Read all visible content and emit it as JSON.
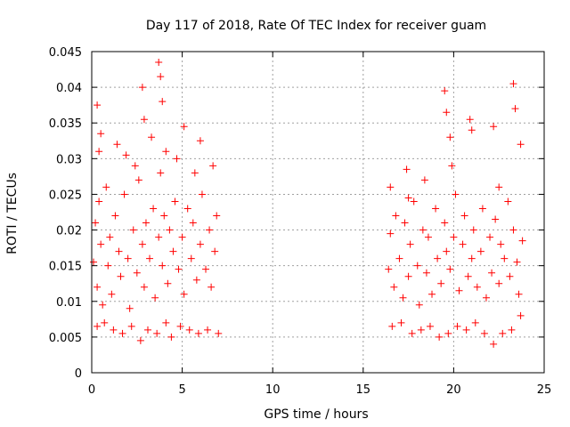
{
  "chart_data": {
    "type": "scatter",
    "title": "Day 117 of 2018, Rate Of TEC Index for receiver guam",
    "xlabel": "GPS time / hours",
    "ylabel": "ROTI / TECUs",
    "xlim": [
      0,
      25
    ],
    "ylim": [
      0,
      0.045
    ],
    "xticks": [
      0,
      5,
      10,
      15,
      20,
      25
    ],
    "xtick_labels": [
      "0",
      "5",
      "10",
      "15",
      "20",
      "25"
    ],
    "yticks": [
      0,
      0.005,
      0.01,
      0.015,
      0.02,
      0.025,
      0.03,
      0.035,
      0.04,
      0.045
    ],
    "ytick_labels": [
      "0",
      "0.005",
      "0.01",
      "0.015",
      "0.02",
      "0.025",
      "0.03",
      "0.035",
      "0.04",
      "0.045"
    ],
    "grid": true,
    "marker": "+",
    "color": "#ff0000",
    "series": [
      {
        "name": "ROTI",
        "x": [
          0.1,
          0.2,
          0.3,
          0.4,
          0.5,
          0.6,
          0.8,
          0.9,
          1.0,
          1.1,
          1.3,
          1.5,
          1.6,
          1.8,
          2.0,
          2.1,
          2.3,
          2.5,
          2.6,
          2.8,
          2.9,
          3.0,
          3.2,
          3.4,
          3.5,
          3.7,
          3.8,
          3.9,
          4.0,
          4.2,
          4.3,
          4.5,
          4.6,
          4.8,
          5.0,
          5.1,
          5.3,
          5.5,
          5.6,
          5.8,
          6.0,
          6.1,
          6.3,
          6.5,
          6.6,
          6.8,
          6.9,
          7.0,
          0.3,
          0.7,
          1.2,
          1.7,
          2.2,
          2.7,
          3.1,
          3.6,
          4.1,
          4.4,
          4.9,
          5.4,
          5.9,
          6.4,
          0.4,
          1.4,
          2.4,
          3.3,
          4.7,
          5.7,
          6.7,
          2.8,
          3.7,
          3.8,
          3.9,
          5.1,
          0.3,
          0.5,
          1.9,
          2.9,
          4.1,
          6.0,
          16.4,
          16.5,
          16.7,
          16.8,
          17.0,
          17.2,
          17.3,
          17.5,
          17.6,
          17.8,
          18.0,
          18.1,
          18.3,
          18.5,
          18.6,
          18.8,
          19.0,
          19.1,
          19.3,
          19.5,
          19.6,
          19.8,
          20.0,
          20.1,
          20.3,
          20.5,
          20.6,
          20.8,
          21.0,
          21.1,
          21.3,
          21.5,
          21.6,
          21.8,
          22.0,
          22.1,
          22.3,
          22.5,
          22.6,
          22.8,
          23.0,
          23.1,
          23.3,
          23.5,
          23.6,
          23.8,
          16.6,
          17.1,
          17.7,
          18.2,
          18.7,
          19.2,
          19.7,
          20.2,
          20.7,
          21.2,
          21.7,
          22.2,
          22.7,
          23.2,
          23.7,
          19.5,
          19.6,
          19.8,
          20.9,
          21.0,
          22.2,
          23.3,
          23.4,
          23.7,
          17.4,
          18.4,
          19.9,
          22.5,
          16.5,
          17.5
        ],
        "y": [
          0.0155,
          0.021,
          0.012,
          0.024,
          0.018,
          0.0095,
          0.026,
          0.015,
          0.019,
          0.011,
          0.022,
          0.017,
          0.0135,
          0.025,
          0.016,
          0.009,
          0.02,
          0.014,
          0.027,
          0.018,
          0.012,
          0.021,
          0.016,
          0.023,
          0.0105,
          0.019,
          0.028,
          0.015,
          0.022,
          0.0125,
          0.02,
          0.017,
          0.024,
          0.0145,
          0.019,
          0.011,
          0.023,
          0.016,
          0.021,
          0.013,
          0.018,
          0.025,
          0.0145,
          0.02,
          0.012,
          0.017,
          0.022,
          0.0055,
          0.0065,
          0.007,
          0.006,
          0.0055,
          0.0065,
          0.0045,
          0.006,
          0.0055,
          0.007,
          0.005,
          0.0065,
          0.006,
          0.0055,
          0.006,
          0.031,
          0.032,
          0.029,
          0.033,
          0.03,
          0.028,
          0.029,
          0.04,
          0.0435,
          0.0415,
          0.038,
          0.0345,
          0.0375,
          0.0335,
          0.0305,
          0.0355,
          0.031,
          0.0325,
          0.0145,
          0.0195,
          0.012,
          0.022,
          0.016,
          0.0105,
          0.021,
          0.0135,
          0.018,
          0.024,
          0.015,
          0.0095,
          0.02,
          0.014,
          0.019,
          0.011,
          0.023,
          0.016,
          0.0125,
          0.021,
          0.017,
          0.0145,
          0.019,
          0.025,
          0.0115,
          0.018,
          0.022,
          0.0135,
          0.016,
          0.02,
          0.012,
          0.017,
          0.023,
          0.0105,
          0.019,
          0.014,
          0.0215,
          0.0125,
          0.018,
          0.016,
          0.024,
          0.0135,
          0.02,
          0.0155,
          0.011,
          0.0185,
          0.0065,
          0.007,
          0.0055,
          0.006,
          0.0065,
          0.005,
          0.0055,
          0.0065,
          0.006,
          0.007,
          0.0055,
          0.004,
          0.0055,
          0.006,
          0.008,
          0.0395,
          0.0365,
          0.033,
          0.0355,
          0.034,
          0.0345,
          0.0405,
          0.037,
          0.032,
          0.0285,
          0.027,
          0.029,
          0.026,
          0.026,
          0.0245
        ]
      }
    ]
  }
}
